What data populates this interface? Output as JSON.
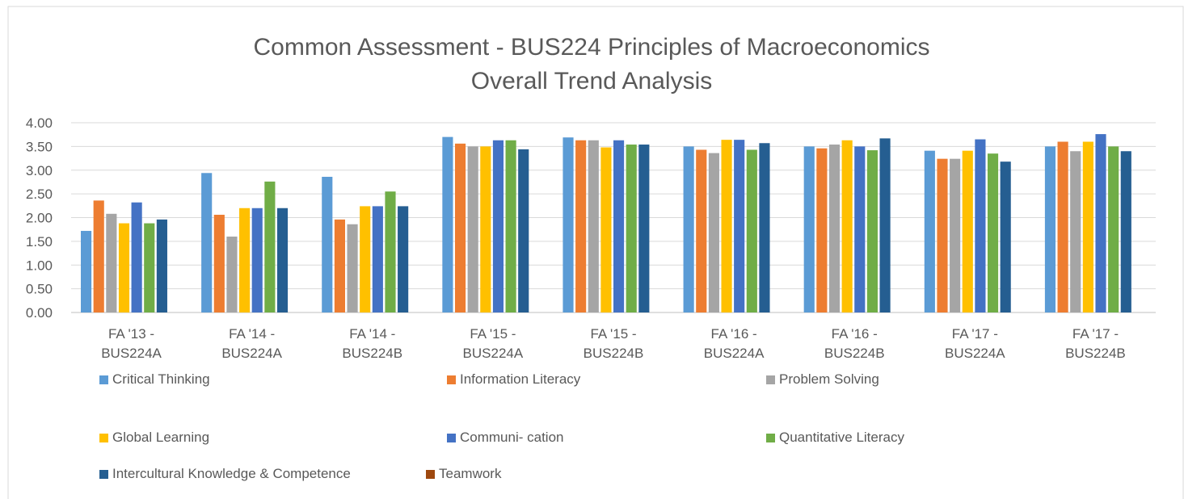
{
  "chart_data": {
    "type": "bar",
    "title": "Common Assessment - BUS224 Principles of Macroeconomics",
    "subtitle": "Overall Trend Analysis",
    "categories": [
      "FA '13 - BUS224A",
      "FA '14 - BUS224A",
      "FA '14 - BUS224B",
      "FA '15 - BUS224A",
      "FA '15 - BUS224B",
      "FA '16 - BUS224A",
      "FA '16 - BUS224B",
      "FA '17 - BUS224A",
      "FA '17 - BUS224B"
    ],
    "series": [
      {
        "name": "Critical Thinking",
        "color": "#5b9bd5",
        "values": [
          1.72,
          2.94,
          2.86,
          3.7,
          3.69,
          3.5,
          3.5,
          3.41,
          3.5
        ]
      },
      {
        "name": "Information Literacy",
        "color": "#ed7d31",
        "values": [
          2.36,
          2.06,
          1.96,
          3.56,
          3.63,
          3.43,
          3.46,
          3.24,
          3.6
        ]
      },
      {
        "name": "Problem Solving",
        "color": "#a5a5a5",
        "values": [
          2.08,
          1.6,
          1.86,
          3.5,
          3.63,
          3.36,
          3.54,
          3.24,
          3.4
        ]
      },
      {
        "name": "Global Learning",
        "color": "#ffc000",
        "values": [
          1.88,
          2.2,
          2.24,
          3.5,
          3.48,
          3.64,
          3.63,
          3.41,
          3.6
        ]
      },
      {
        "name": "Communi- cation",
        "color": "#4472c4",
        "values": [
          2.32,
          2.2,
          2.24,
          3.63,
          3.63,
          3.64,
          3.5,
          3.65,
          3.76
        ]
      },
      {
        "name": "Quantitative Literacy",
        "color": "#70ad47",
        "values": [
          1.88,
          2.76,
          2.55,
          3.63,
          3.54,
          3.43,
          3.42,
          3.35,
          3.5
        ]
      },
      {
        "name": "Intercultural Knowledge & Competence",
        "color": "#255e91",
        "values": [
          1.96,
          2.2,
          2.24,
          3.44,
          3.54,
          3.57,
          3.67,
          3.18,
          3.4
        ]
      },
      {
        "name": "Teamwork",
        "color": "#9e480e",
        "values": [
          null,
          null,
          null,
          null,
          null,
          null,
          null,
          null,
          null
        ]
      }
    ],
    "ylim": [
      0,
      4
    ],
    "yticks": [
      {
        "value": 0,
        "label": "0.00"
      },
      {
        "value": 0.5,
        "label": "0.50"
      },
      {
        "value": 1,
        "label": "1.00"
      },
      {
        "value": 1.5,
        "label": "1.50"
      },
      {
        "value": 2,
        "label": "2.00"
      },
      {
        "value": 2.5,
        "label": "2.50"
      },
      {
        "value": 3,
        "label": "3.00"
      },
      {
        "value": 3.5,
        "label": "3.50"
      },
      {
        "value": 4,
        "label": "4.00"
      }
    ],
    "grid": true
  }
}
